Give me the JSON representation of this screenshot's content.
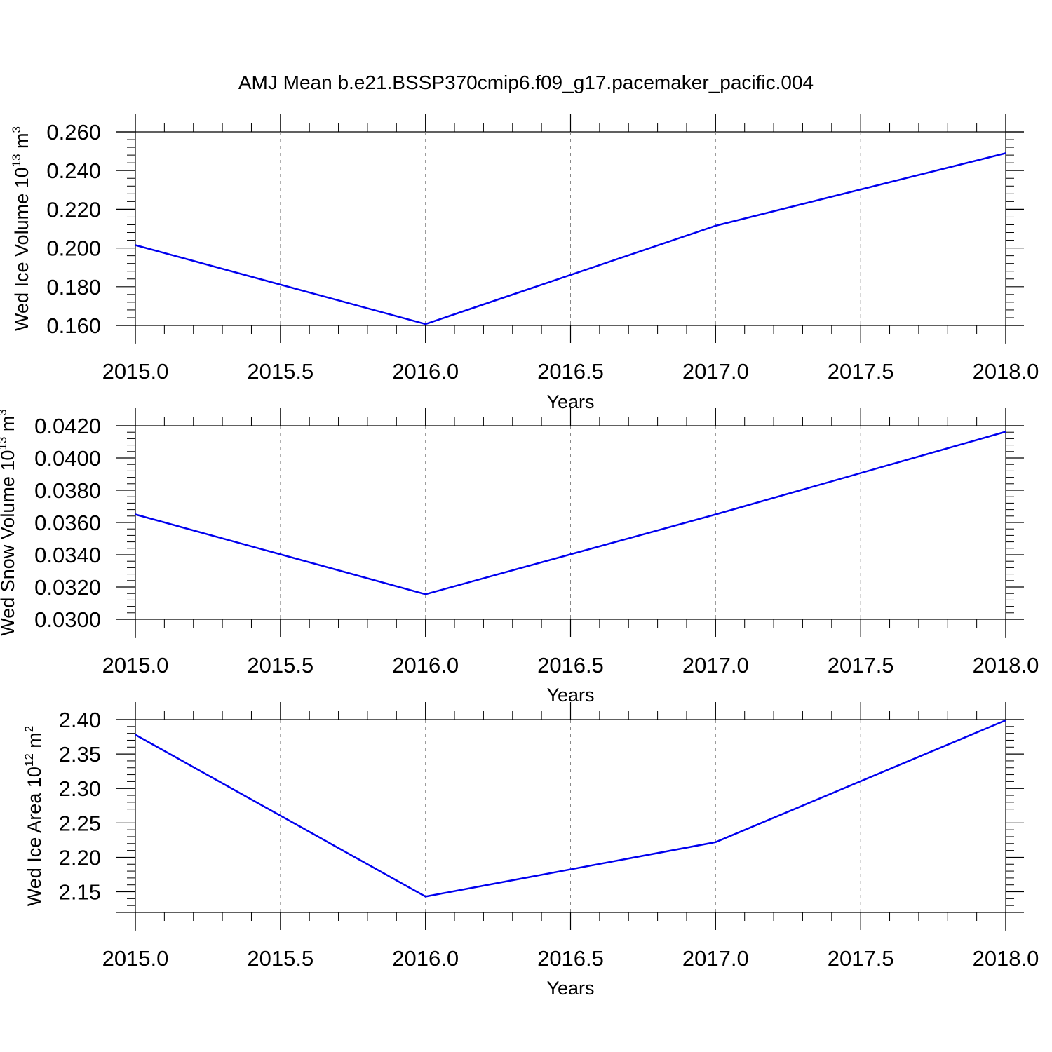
{
  "title": "AMJ Mean b.e21.BSSP370cmip6.f09_g17.pacemaker_pacific.004",
  "colors": {
    "line": "#0000ee",
    "axis": "#000000",
    "grid": "#888888"
  },
  "chart_data": [
    {
      "type": "line",
      "xlabel": "Years",
      "ylabel": "Wed Ice Volume 10",
      "ylabel_exp": "13",
      "ylabel_unit": " m",
      "ylabel_unit_exp": "3",
      "xlim": [
        2015.0,
        2018.0
      ],
      "ylim": [
        0.16,
        0.26
      ],
      "x": [
        2015.0,
        2016.0,
        2017.0,
        2018.0
      ],
      "xticks": [
        "2015.0",
        "2015.5",
        "2016.0",
        "2016.5",
        "2017.0",
        "2017.5",
        "2018.0"
      ],
      "yticks": [
        "0.160",
        "0.180",
        "0.200",
        "0.220",
        "0.240",
        "0.260"
      ],
      "yticks_values": [
        0.16,
        0.18,
        0.2,
        0.22,
        0.24,
        0.26
      ],
      "series": [
        {
          "values": [
            0.2015,
            0.1607,
            0.2115,
            0.249
          ]
        }
      ],
      "grid": "vertical-dashed"
    },
    {
      "type": "line",
      "xlabel": "Years",
      "ylabel": "Wed Snow Volume 10",
      "ylabel_exp": "13",
      "ylabel_unit": " m",
      "ylabel_unit_exp": "3",
      "xlim": [
        2015.0,
        2018.0
      ],
      "ylim": [
        0.03,
        0.042
      ],
      "x": [
        2015.0,
        2016.0,
        2017.0,
        2018.0
      ],
      "xticks": [
        "2015.0",
        "2015.5",
        "2016.0",
        "2016.5",
        "2017.0",
        "2017.5",
        "2018.0"
      ],
      "yticks": [
        "0.0300",
        "0.0320",
        "0.0340",
        "0.0360",
        "0.0380",
        "0.0400",
        "0.0420"
      ],
      "yticks_values": [
        0.03,
        0.032,
        0.034,
        0.036,
        0.038,
        0.04,
        0.042
      ],
      "series": [
        {
          "values": [
            0.0365,
            0.03155,
            0.0365,
            0.04163
          ]
        }
      ],
      "grid": "vertical-dashed"
    },
    {
      "type": "line",
      "xlabel": "Years",
      "ylabel": "Wed Ice Area 10",
      "ylabel_exp": "12",
      "ylabel_unit": " m",
      "ylabel_unit_exp": "2",
      "xlim": [
        2015.0,
        2018.0
      ],
      "ylim": [
        2.12,
        2.4
      ],
      "x": [
        2015.0,
        2016.0,
        2017.0,
        2018.0
      ],
      "xticks": [
        "2015.0",
        "2015.5",
        "2016.0",
        "2016.5",
        "2017.0",
        "2017.5",
        "2018.0"
      ],
      "yticks": [
        "2.15",
        "2.20",
        "2.25",
        "2.30",
        "2.35",
        "2.40"
      ],
      "yticks_values": [
        2.15,
        2.2,
        2.25,
        2.3,
        2.35,
        2.4
      ],
      "series": [
        {
          "values": [
            2.378,
            2.143,
            2.222,
            2.399
          ]
        }
      ],
      "grid": "vertical-dashed"
    }
  ]
}
